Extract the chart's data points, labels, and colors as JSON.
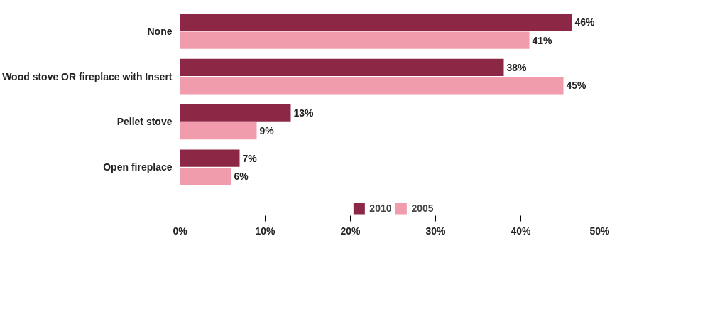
{
  "chart_data": {
    "type": "bar",
    "orientation": "horizontal",
    "categories": [
      "None",
      "Wood stove OR fireplace with Insert",
      "Pellet stove",
      "Open fireplace"
    ],
    "series": [
      {
        "name": "2010",
        "color": "#8c2846",
        "values": [
          46,
          38,
          13,
          7
        ],
        "value_labels": [
          "46%",
          "38%",
          "13%",
          "7%"
        ]
      },
      {
        "name": "2005",
        "color": "#f09cac",
        "values": [
          41,
          45,
          9,
          6
        ],
        "value_labels": [
          "41%",
          "45%",
          "9%",
          "6%"
        ]
      }
    ],
    "xlim": [
      0,
      50
    ],
    "xticks": [
      {
        "value": 0,
        "label": "0%"
      },
      {
        "value": 10,
        "label": "10%"
      },
      {
        "value": 20,
        "label": "20%"
      },
      {
        "value": 30,
        "label": "30%"
      },
      {
        "value": 40,
        "label": "40%"
      },
      {
        "value": 50,
        "label": "50%"
      }
    ],
    "grid": false,
    "legend": "bottom"
  }
}
